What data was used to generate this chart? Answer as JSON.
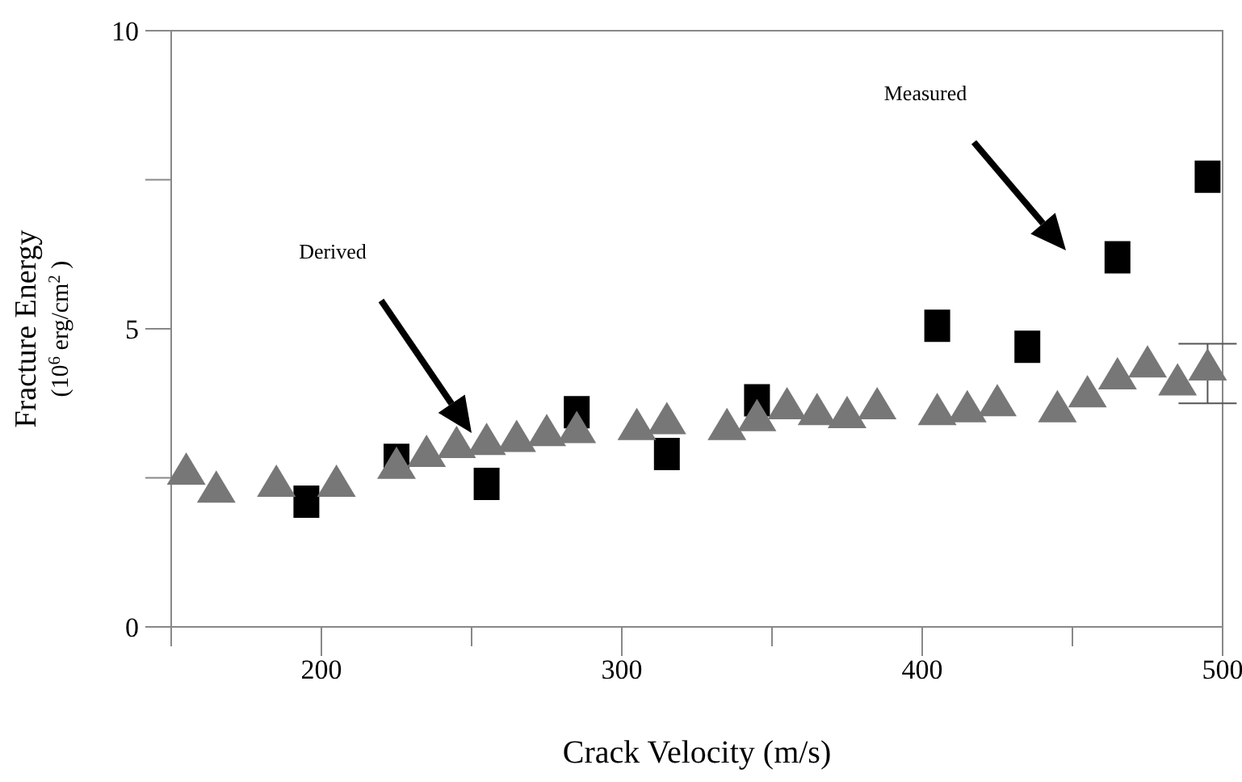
{
  "chart_data": {
    "type": "scatter",
    "xlabel": "Crack Velocity (m/s)",
    "ylabel": "Fracture Energy\n(10$^{6}$ erg/cm$^{2}$ )",
    "xlim": [
      150,
      500
    ],
    "ylim": [
      0,
      10
    ],
    "xticks": [
      {
        "value": 150,
        "label": null
      },
      200,
      {
        "value": 250,
        "label": null
      },
      300,
      {
        "value": 350,
        "label": null
      },
      400,
      {
        "value": 450,
        "label": null
      },
      500
    ],
    "yticks": [
      0,
      {
        "value": 2.5,
        "label": null
      },
      5,
      {
        "value": 7.5,
        "label": null
      },
      10
    ],
    "grid": false,
    "series": [
      {
        "color": "#777777",
        "marker": "triangle",
        "x": [
          155,
          165,
          185,
          205,
          225,
          235,
          245,
          255,
          265,
          275,
          285,
          305,
          315,
          335,
          345,
          355,
          365,
          375,
          385,
          405,
          415,
          425,
          445,
          455,
          465,
          475,
          485,
          495
        ],
        "values": [
          2.6,
          2.3,
          2.4,
          2.4,
          2.7,
          2.9,
          3.05,
          3.1,
          3.15,
          3.25,
          3.3,
          3.35,
          3.45,
          3.35,
          3.5,
          3.7,
          3.6,
          3.55,
          3.7,
          3.6,
          3.65,
          3.75,
          3.65,
          3.9,
          4.2,
          4.4,
          4.1,
          4.35
        ],
        "errors": [
          null,
          null,
          null,
          null,
          null,
          null,
          null,
          null,
          null,
          null,
          null,
          null,
          null,
          null,
          null,
          null,
          null,
          null,
          null,
          null,
          null,
          null,
          null,
          null,
          null,
          null,
          null,
          [
            3.75,
            4.75
          ]
        ]
      },
      {
        "color": "#000000",
        "marker": "square",
        "x": [
          195,
          225,
          255,
          285,
          315,
          345,
          405,
          435,
          465,
          495
        ],
        "values": [
          2.1,
          2.8,
          2.4,
          3.6,
          2.9,
          3.8,
          5.05,
          4.7,
          6.2,
          7.55
        ]
      }
    ],
    "annotations": [
      "Derived",
      "Measured"
    ]
  }
}
